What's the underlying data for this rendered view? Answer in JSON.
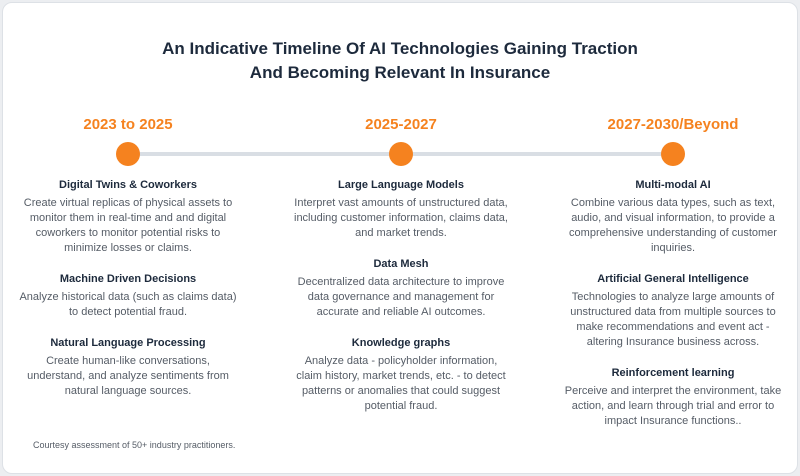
{
  "title": {
    "line1": "An Indicative Timeline Of AI Technologies Gaining Traction",
    "line2": "And Becoming Relevant In Insurance"
  },
  "columns": [
    {
      "period": "2023 to 2025",
      "items": [
        {
          "heading": "Digital Twins & Coworkers",
          "text": "Create virtual replicas of physical assets to monitor them in real-time and and digital coworkers to monitor potential risks to minimize losses or claims."
        },
        {
          "heading": "Machine Driven Decisions",
          "text": "Analyze historical data (such as claims data) to detect potential fraud."
        },
        {
          "heading": "Natural Language Processing",
          "text": "Create human-like conversations, understand, and analyze sentiments from natural language sources."
        }
      ]
    },
    {
      "period": "2025-2027",
      "items": [
        {
          "heading": "Large Language Models",
          "text": "Interpret vast amounts of unstructured data, including customer information, claims data, and market trends."
        },
        {
          "heading": "Data Mesh",
          "text": "Decentralized data architecture to improve data governance and management for accurate and reliable AI outcomes."
        },
        {
          "heading": "Knowledge graphs",
          "text": "Analyze data - policyholder information, claim history, market trends, etc. - to detect patterns or anomalies that could suggest potential fraud."
        }
      ]
    },
    {
      "period": "2027-2030/Beyond",
      "items": [
        {
          "heading": "Multi-modal AI",
          "text": "Combine various data types, such as text, audio, and visual information, to provide a comprehensive understanding of customer inquiries."
        },
        {
          "heading": "Artificial General Intelligence",
          "text": "Technologies to analyze large amounts of unstructured data from multiple sources to make recommendations and event act - altering Insurance business across."
        },
        {
          "heading": "Reinforcement learning",
          "text": "Perceive and interpret the environment, take action, and learn through trial and error to impact Insurance functions.."
        }
      ]
    }
  ],
  "footnote": "Courtesy assessment of 50+ industry practitioners."
}
